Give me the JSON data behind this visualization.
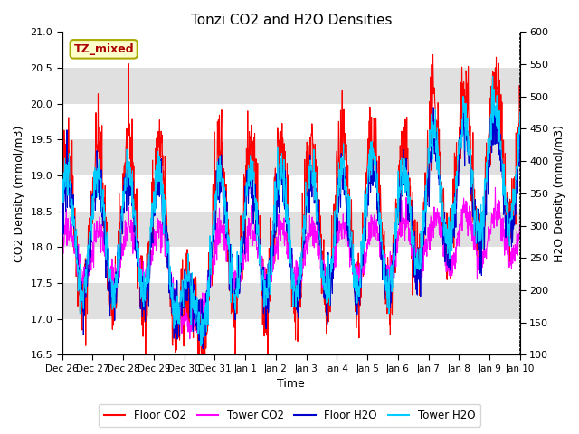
{
  "title": "Tonzi CO2 and H2O Densities",
  "xlabel": "Time",
  "ylabel_left": "CO2 Density (mmol/m3)",
  "ylabel_right": "H2O Density (mmol/m3)",
  "ylim_left": [
    16.5,
    21.0
  ],
  "ylim_right": [
    100,
    600
  ],
  "annotation_text": "TZ_mixed",
  "annotation_color": "#aa0000",
  "annotation_bg": "#ffffcc",
  "annotation_border": "#aaaa00",
  "line_colors": {
    "floor_co2": "#ff0000",
    "tower_co2": "#ff00ff",
    "floor_h2o": "#0000cc",
    "tower_h2o": "#00ccff"
  },
  "legend_labels": [
    "Floor CO2",
    "Tower CO2",
    "Floor H2O",
    "Tower H2O"
  ],
  "xtick_labels": [
    "Dec 26",
    "Dec 27",
    "Dec 28",
    "Dec 29",
    "Dec 30",
    "Dec 31",
    "Jan 1",
    "Jan 2",
    "Jan 3",
    "Jan 4",
    "Jan 5",
    "Jan 6",
    "Jan 7",
    "Jan 8",
    "Jan 9",
    "Jan 10"
  ],
  "seed": 42,
  "bg_band_color": "#e0e0e0"
}
